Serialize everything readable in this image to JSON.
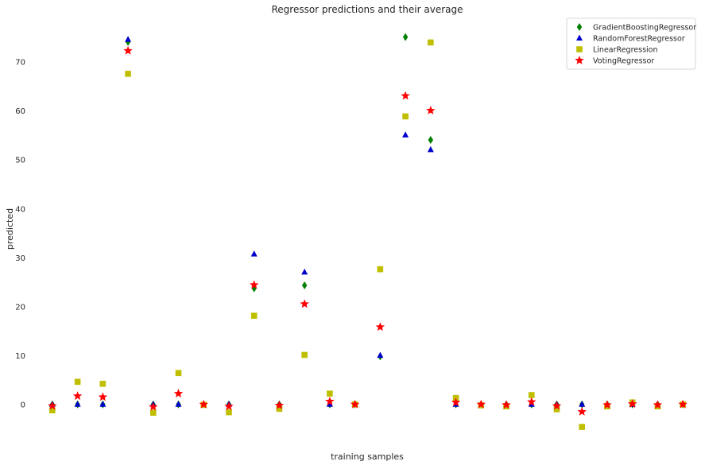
{
  "chart_data": {
    "type": "scatter",
    "title": "Regressor predictions and their average",
    "xlabel": "training samples",
    "ylabel": "predicted",
    "x": [
      0,
      1,
      2,
      3,
      4,
      5,
      6,
      7,
      8,
      9,
      10,
      11,
      12,
      13,
      14,
      15,
      16,
      17,
      18,
      19,
      20,
      21,
      22,
      23,
      24,
      25
    ],
    "xlim": [
      -0.5,
      25.5
    ],
    "ylim": [
      -8,
      79
    ],
    "yticks": [
      0,
      10,
      20,
      30,
      40,
      50,
      60,
      70
    ],
    "grid": false,
    "legend_position": "top-right",
    "series": [
      {
        "name": "GradientBoostingRegressor",
        "marker": "diamond",
        "color": "#008000",
        "values": [
          0,
          0,
          0,
          74,
          0,
          0,
          0,
          0,
          23.7,
          0,
          24.3,
          0,
          0,
          9.8,
          75,
          54,
          0,
          0,
          0,
          0,
          0,
          0,
          0,
          0,
          0,
          0
        ]
      },
      {
        "name": "RandomForestRegressor",
        "marker": "triangle",
        "color": "#0000cc",
        "values": [
          0,
          0,
          0,
          74.5,
          0,
          0,
          0,
          0,
          30.7,
          0,
          27,
          0,
          0,
          10,
          55,
          52,
          0,
          0,
          0,
          0,
          0,
          0,
          0,
          0,
          0,
          0
        ]
      },
      {
        "name": "LinearRegression",
        "marker": "square",
        "color": "#bfbf00",
        "values": [
          -1.2,
          4.6,
          4.2,
          67.5,
          -1.7,
          6.4,
          -0.1,
          -1.6,
          18.1,
          -0.9,
          10.1,
          2.2,
          0,
          27.6,
          58.8,
          73.9,
          1.3,
          -0.2,
          -0.4,
          1.9,
          -1,
          -4.6,
          -0.4,
          0.4,
          -0.4,
          0
        ]
      },
      {
        "name": "VotingRegressor",
        "marker": "star",
        "color": "#ff0000",
        "values": [
          -0.3,
          1.7,
          1.5,
          72.2,
          -0.5,
          2.2,
          0,
          -0.4,
          24.4,
          -0.2,
          20.5,
          0.6,
          0,
          15.8,
          63,
          60,
          0.4,
          0,
          -0.1,
          0.5,
          -0.3,
          -1.5,
          -0.1,
          0.1,
          -0.1,
          0
        ]
      }
    ]
  }
}
